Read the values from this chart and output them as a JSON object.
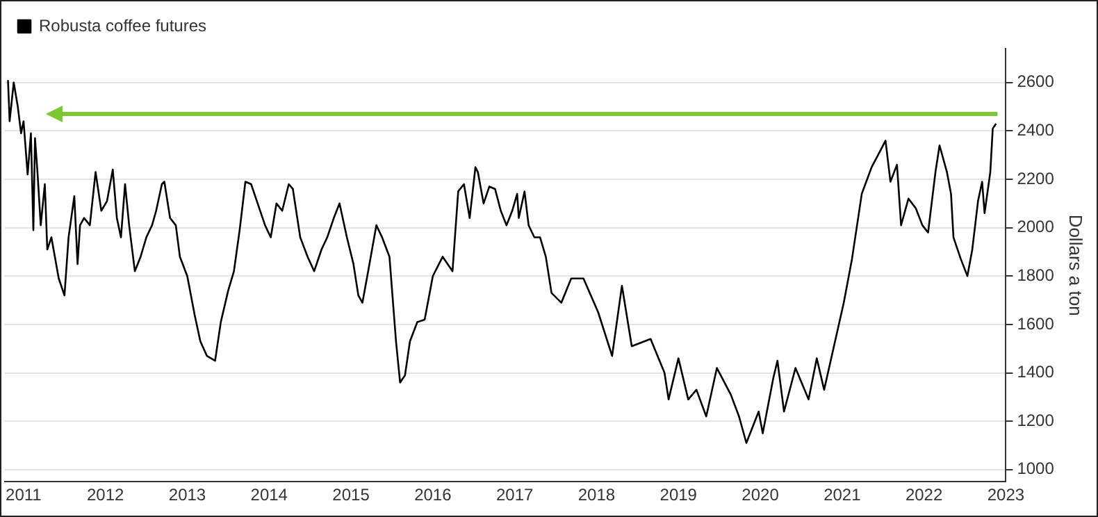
{
  "chart_data": {
    "type": "line",
    "xlabel": null,
    "ylabel": "Dollars a ton",
    "x": [
      2011.31,
      2011.33,
      2011.38,
      2011.43,
      2011.47,
      2011.5,
      2011.55,
      2011.59,
      2011.62,
      2011.64,
      2011.67,
      2011.71,
      2011.76,
      2011.79,
      2011.84,
      2011.93,
      2012.0,
      2012.05,
      2012.12,
      2012.16,
      2012.19,
      2012.24,
      2012.31,
      2012.38,
      2012.45,
      2012.52,
      2012.59,
      2012.64,
      2012.69,
      2012.74,
      2012.79,
      2012.86,
      2012.93,
      2013.0,
      2013.07,
      2013.12,
      2013.19,
      2013.22,
      2013.29,
      2013.36,
      2013.41,
      2013.5,
      2013.59,
      2013.66,
      2013.74,
      2013.84,
      2013.91,
      2014.0,
      2014.07,
      2014.14,
      2014.21,
      2014.28,
      2014.34,
      2014.45,
      2014.52,
      2014.59,
      2014.66,
      2014.74,
      2014.79,
      2014.88,
      2014.97,
      2015.05,
      2015.14,
      2015.21,
      2015.29,
      2015.36,
      2015.45,
      2015.53,
      2015.59,
      2015.64,
      2015.71,
      2015.81,
      2015.88,
      2015.97,
      2016.05,
      2016.1,
      2016.16,
      2016.22,
      2016.31,
      2016.4,
      2016.5,
      2016.62,
      2016.74,
      2016.81,
      2016.88,
      2016.95,
      2017.02,
      2017.05,
      2017.12,
      2017.19,
      2017.26,
      2017.33,
      2017.4,
      2017.47,
      2017.53,
      2017.55,
      2017.62,
      2017.67,
      2017.74,
      2017.81,
      2017.88,
      2017.95,
      2018.07,
      2018.19,
      2018.34,
      2018.52,
      2018.69,
      2018.81,
      2018.93,
      2019.16,
      2019.33,
      2019.38,
      2019.5,
      2019.62,
      2019.72,
      2019.84,
      2019.97,
      2020.14,
      2020.24,
      2020.33,
      2020.48,
      2020.53,
      2020.66,
      2020.71,
      2020.79,
      2020.93,
      2021.09,
      2021.19,
      2021.28,
      2021.4,
      2021.52,
      2021.62,
      2021.74,
      2021.86,
      2021.97,
      2022.03,
      2022.09,
      2022.17,
      2022.22,
      2022.31,
      2022.4,
      2022.48,
      2022.55,
      2022.64,
      2022.69,
      2022.78,
      2022.83,
      2022.86,
      2022.95,
      2023.03,
      2023.09,
      2023.16,
      2023.21,
      2023.24,
      2023.31,
      2023.34,
      2023.38
    ],
    "series": [
      {
        "name": "Robusta coffee futures",
        "color": "#000000",
        "values": [
          2610,
          2440,
          2600,
          2500,
          2390,
          2440,
          2220,
          2390,
          1990,
          2370,
          2230,
          2010,
          2180,
          1910,
          1960,
          1790,
          1720,
          1960,
          2130,
          1850,
          2010,
          2040,
          2010,
          2230,
          2070,
          2110,
          2240,
          2040,
          1960,
          2180,
          2010,
          1820,
          1880,
          1960,
          2010,
          2070,
          2180,
          2190,
          2040,
          2010,
          1880,
          1800,
          1640,
          1530,
          1470,
          1450,
          1610,
          1740,
          1820,
          1990,
          2190,
          2180,
          2120,
          2010,
          1960,
          2100,
          2070,
          2180,
          2160,
          1960,
          1880,
          1820,
          1910,
          1960,
          2040,
          2100,
          1960,
          1850,
          1720,
          1690,
          1820,
          2010,
          1960,
          1880,
          1530,
          1360,
          1390,
          1530,
          1610,
          1620,
          1800,
          1880,
          1820,
          2150,
          2180,
          2040,
          2250,
          2230,
          2100,
          2170,
          2160,
          2070,
          2010,
          2070,
          2140,
          2040,
          2150,
          2010,
          1960,
          1960,
          1880,
          1730,
          1690,
          1790,
          1790,
          1650,
          1470,
          1760,
          1510,
          1540,
          1400,
          1290,
          1460,
          1290,
          1330,
          1220,
          1420,
          1310,
          1220,
          1110,
          1240,
          1150,
          1380,
          1450,
          1240,
          1420,
          1290,
          1460,
          1330,
          1510,
          1690,
          1870,
          2140,
          2250,
          2320,
          2360,
          2190,
          2260,
          2010,
          2120,
          2080,
          2010,
          1980,
          2230,
          2340,
          2230,
          2140,
          1960,
          1870,
          1800,
          1910,
          2110,
          2190,
          2060,
          2230,
          2410,
          2430
        ]
      }
    ],
    "xlim": [
      2011.27,
      2023.5
    ],
    "xticks": [
      {
        "value": 2011.5,
        "label": "2011"
      },
      {
        "value": 2012.5,
        "label": "2012"
      },
      {
        "value": 2013.5,
        "label": "2013"
      },
      {
        "value": 2014.5,
        "label": "2014"
      },
      {
        "value": 2015.5,
        "label": "2015"
      },
      {
        "value": 2016.5,
        "label": "2016"
      },
      {
        "value": 2017.5,
        "label": "2017"
      },
      {
        "value": 2018.5,
        "label": "2018"
      },
      {
        "value": 2019.5,
        "label": "2019"
      },
      {
        "value": 2020.5,
        "label": "2020"
      },
      {
        "value": 2021.5,
        "label": "2021"
      },
      {
        "value": 2022.5,
        "label": "2022"
      },
      {
        "value": 2023.5,
        "label": "2023"
      }
    ],
    "ylim": [
      950,
      2740
    ],
    "yticks": [
      1000,
      1200,
      1400,
      1600,
      1800,
      2000,
      2200,
      2400,
      2600
    ],
    "ref_lines": [
      {
        "axis": "y",
        "value": 2470,
        "label": null,
        "color": "#7dc832"
      }
    ],
    "grid": "y",
    "legend": "top left",
    "marker": "none",
    "line_style": "solid"
  }
}
